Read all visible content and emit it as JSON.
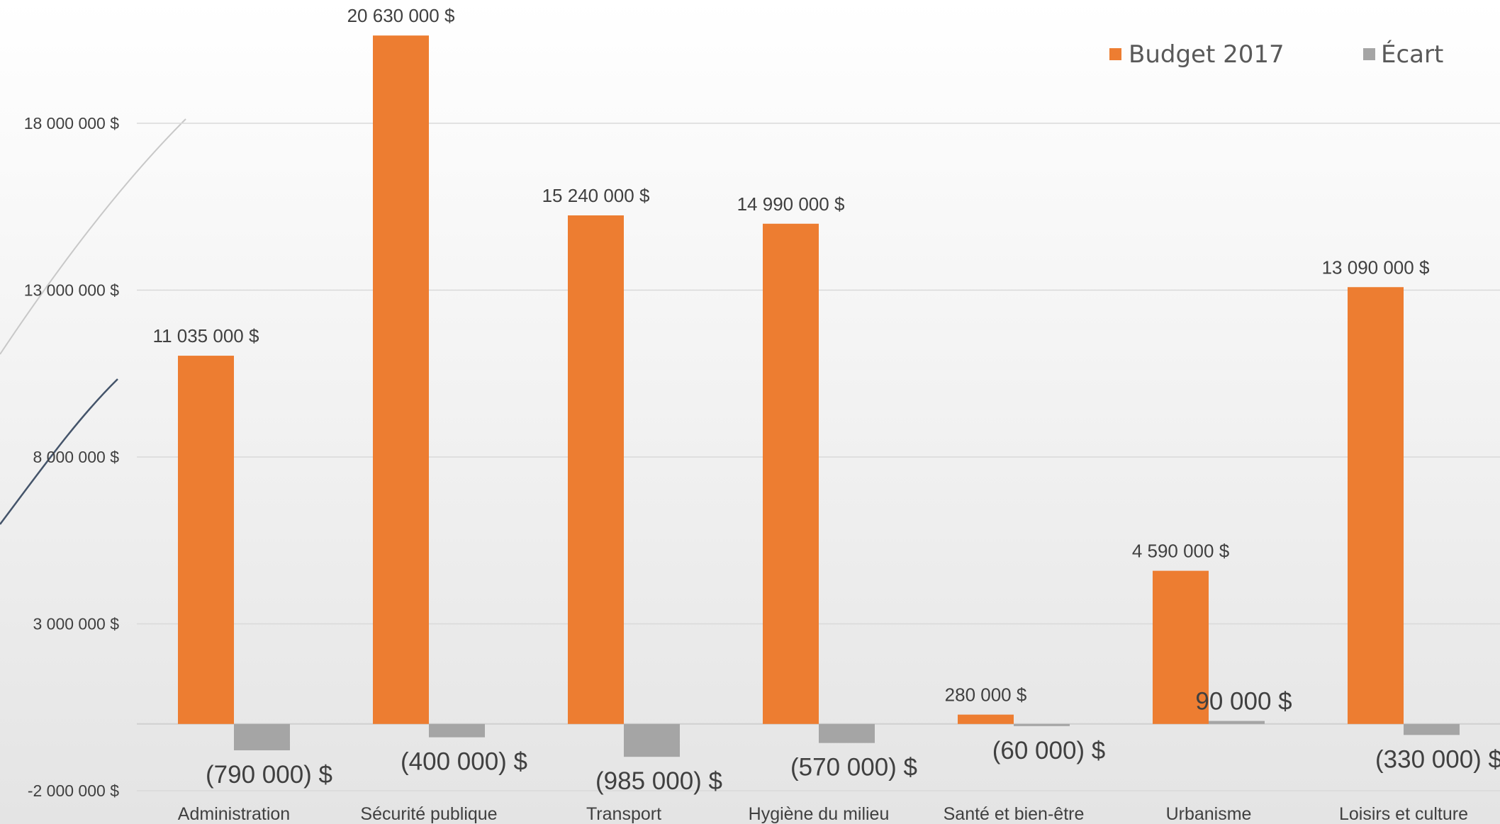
{
  "chart_data": {
    "type": "bar",
    "categories": [
      "Administration",
      "Sécurité publique",
      "Transport",
      "Hygiène du milieu",
      "Santé et bien-être",
      "Urbanisme",
      "Loisirs et culture"
    ],
    "series": [
      {
        "name": "Budget 2017",
        "color": "#ED7D31",
        "values": [
          11035000,
          20630000,
          15240000,
          14990000,
          280000,
          4590000,
          13090000
        ],
        "labels": [
          "11 035 000 $",
          "20 630 000 $",
          "15 240 000 $",
          "14 990 000 $",
          "280 000 $",
          "4 590 000 $",
          "13 090 000 $"
        ]
      },
      {
        "name": "Écart",
        "color": "#A5A5A5",
        "values": [
          -790000,
          -400000,
          -985000,
          -570000,
          -60000,
          90000,
          -330000
        ],
        "labels": [
          "(790 000) $",
          "(400 000) $",
          "(985 000) $",
          "(570 000) $",
          "(60 000) $",
          "90 000  $",
          "(330 000) $"
        ]
      }
    ],
    "y_ticks": [
      -2000000,
      3000000,
      8000000,
      13000000,
      18000000
    ],
    "y_tick_labels": [
      "-2 000 000 $",
      "3 000 000 $",
      "8 000 000 $",
      "13 000 000 $",
      "18 000 000 $"
    ],
    "ylim": [
      -2000000,
      21000000
    ],
    "grid": true,
    "legend_position": "top-right"
  }
}
